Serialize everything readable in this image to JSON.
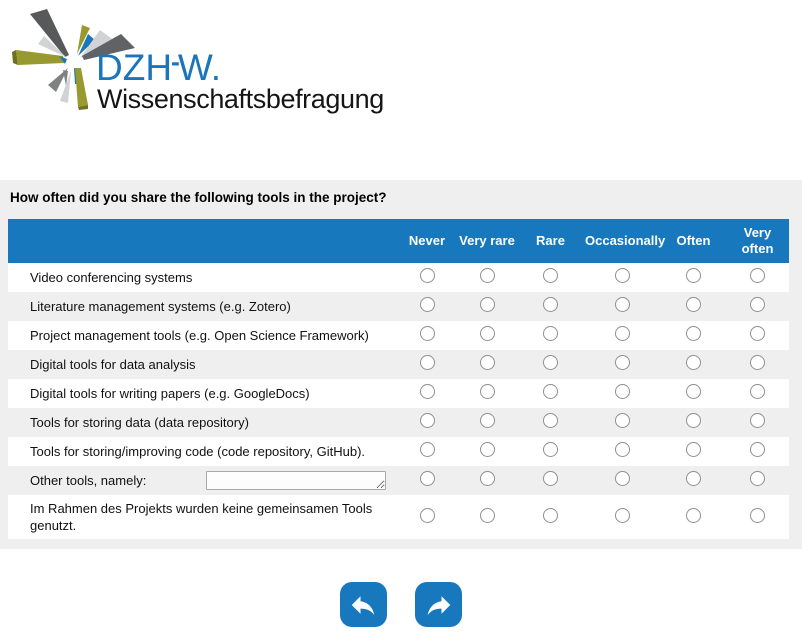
{
  "logo": {
    "acronym_prefix": "DZH",
    "acronym_hyphen": "-",
    "acronym_suffix": "W.",
    "subtitle": "Wissenschaftsbefragung",
    "colors": {
      "blue": "#1b75bb",
      "dark_gray": "#58595b",
      "mid_gray": "#808184",
      "light_gray": "#d1d3d4",
      "olive": "#98992e"
    }
  },
  "question": {
    "text": "How often did you share the following tools in the project?"
  },
  "table": {
    "columns": [
      "Never",
      "Very rare",
      "Rare",
      "Occasionally",
      "Often",
      "Very often"
    ],
    "rows": [
      {
        "label": "Video conferencing systems"
      },
      {
        "label": "Literature management systems (e.g. Zotero)"
      },
      {
        "label": "Project management tools (e.g. Open Science Framework)"
      },
      {
        "label": "Digital tools for data analysis"
      },
      {
        "label": "Digital tools for writing papers (e.g. GoogleDocs)"
      },
      {
        "label": "Tools for storing data (data repository)"
      },
      {
        "label": "Tools for storing/improving code (code repository, GitHub)."
      },
      {
        "label": "Other tools, namely:",
        "has_input": true,
        "input_value": ""
      },
      {
        "label": "Im Rahmen des Projekts wurden keine gemeinsamen Tools genutzt."
      }
    ]
  },
  "nav": {
    "back_icon": "curved-arrow-left",
    "forward_icon": "curved-arrow-right"
  },
  "colors": {
    "header_blue": "#1778be",
    "section_bg": "#efefef",
    "row_white": "#ffffff"
  }
}
